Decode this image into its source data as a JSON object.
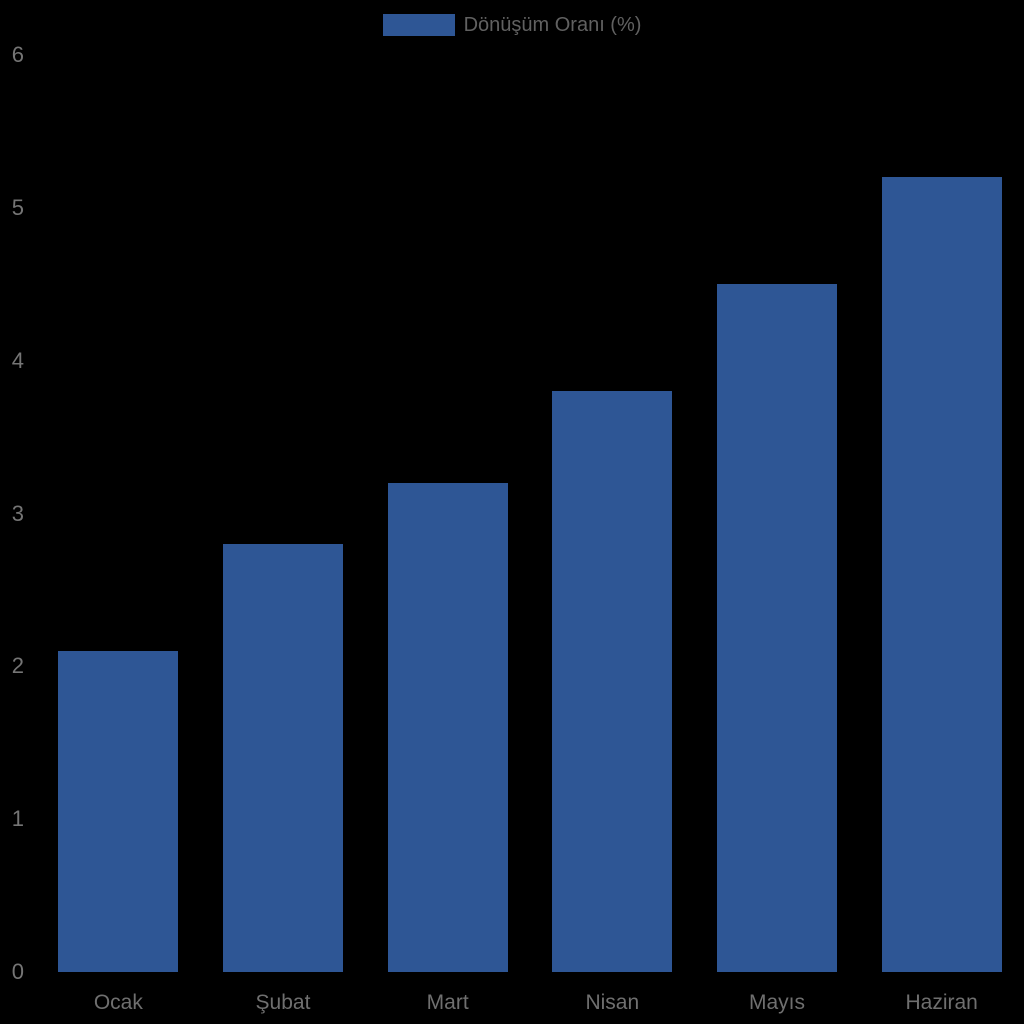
{
  "chart_data": {
    "type": "bar",
    "title": "",
    "categories": [
      "Ocak",
      "Şubat",
      "Mart",
      "Nisan",
      "Mayıs",
      "Haziran"
    ],
    "values": [
      2.1,
      2.8,
      3.2,
      3.8,
      4.5,
      5.2
    ],
    "series_name": "Dönüşüm Oranı (%)",
    "xlabel": "",
    "ylabel": "",
    "ylim": [
      0,
      6
    ],
    "yticks": [
      0,
      1,
      2,
      3,
      4,
      5,
      6
    ],
    "grid": false,
    "legend_position": "top-center"
  },
  "colors": {
    "background": "#000000",
    "bar_fill": "#2e5695",
    "y_tick_text": "#757575",
    "x_tick_text": "#6f6f6f",
    "legend_text": "#616161"
  }
}
